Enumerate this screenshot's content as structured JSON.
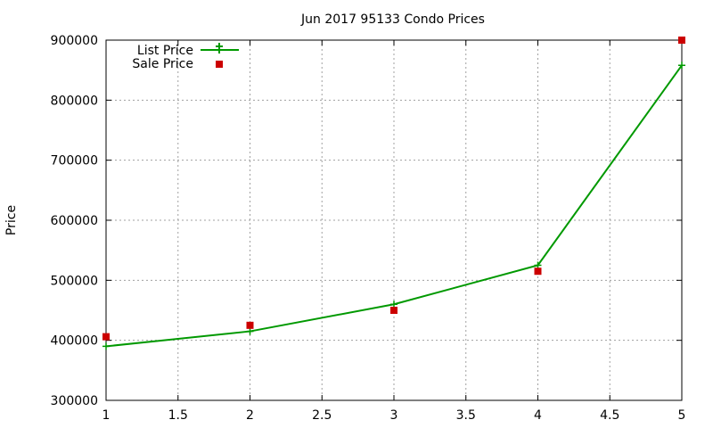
{
  "chart_data": {
    "type": "line",
    "title": "Jun 2017 95133 Condo Prices",
    "xlabel": "",
    "ylabel": "Price",
    "xlim": [
      1,
      5
    ],
    "ylim": [
      300000,
      900000
    ],
    "x_ticks": [
      "1",
      "1.5",
      "2",
      "2.5",
      "3",
      "3.5",
      "4",
      "4.5",
      "5"
    ],
    "y_ticks": [
      "300000",
      "400000",
      "500000",
      "600000",
      "700000",
      "800000",
      "900000"
    ],
    "grid": true,
    "legend_position": "top-left",
    "series": [
      {
        "name": "List Price",
        "style": "line-with-plus-markers",
        "color": "#009900",
        "x": [
          1,
          2,
          3,
          4,
          5
        ],
        "values": [
          390000,
          415000,
          460000,
          525000,
          858000
        ]
      },
      {
        "name": "Sale Price",
        "style": "square-markers",
        "color": "#cc0000",
        "x": [
          1,
          2,
          3,
          4,
          5
        ],
        "values": [
          406000,
          425000,
          450000,
          515000,
          900000
        ]
      }
    ]
  }
}
